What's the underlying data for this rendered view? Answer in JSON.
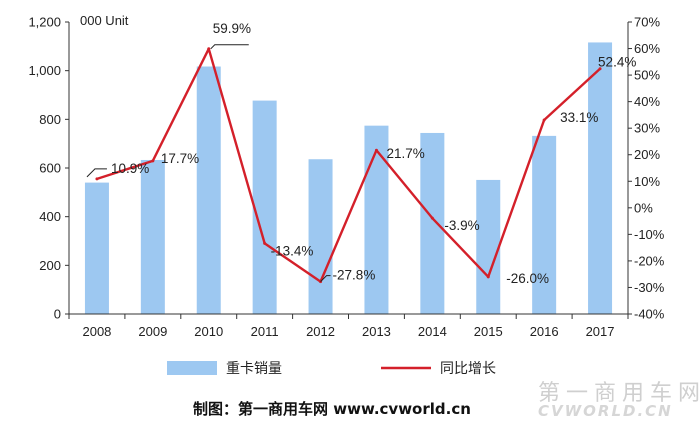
{
  "chart_data": {
    "type": "bar",
    "categories": [
      "2008",
      "2009",
      "2010",
      "2011",
      "2012",
      "2013",
      "2014",
      "2015",
      "2016",
      "2017"
    ],
    "series": [
      {
        "name": "重卡销量",
        "type": "bar",
        "axis": "left",
        "values": [
          540,
          633,
          1017,
          877,
          636,
          774,
          744,
          551,
          732,
          1116
        ]
      },
      {
        "name": "同比增长",
        "type": "line",
        "axis": "right",
        "values": [
          10.9,
          17.7,
          59.9,
          -13.4,
          -27.8,
          21.7,
          -3.9,
          -26.0,
          33.1,
          52.4
        ],
        "labels": [
          "10.9%",
          "17.7%",
          "59.9%",
          "-13.4%",
          "-27.8%",
          "21.7%",
          "-3.9%",
          "-26.0%",
          "33.1%",
          "52.4%"
        ]
      }
    ],
    "ylabel": "000 Unit",
    "ylim": [
      0,
      1200
    ],
    "yticks": [
      "0",
      "200",
      "400",
      "600",
      "800",
      "1,000",
      "1,200"
    ],
    "y2lim": [
      -40,
      70
    ],
    "y2ticks": [
      "-40%",
      "-30%",
      "-20%",
      "-10%",
      "0%",
      "10%",
      "20%",
      "30%",
      "40%",
      "50%",
      "60%",
      "70%"
    ],
    "grid": false,
    "legend": "bottom"
  },
  "colors": {
    "bar": "#9dc8f1",
    "line": "#d4202a"
  },
  "credit": "制图：第一商用车网 www.cvworld.cn",
  "watermark": {
    "line1": "第一商用车网",
    "line2": "CVWORLD.CN"
  }
}
